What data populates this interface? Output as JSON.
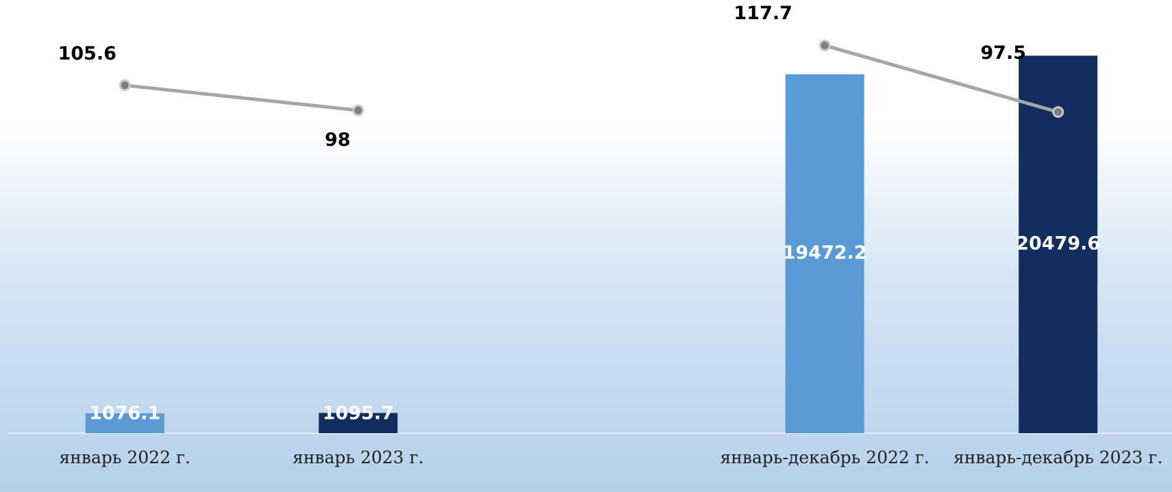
{
  "chart_data": {
    "type": "bar",
    "categories": [
      "январь 2022 г.",
      "январь 2023 г.",
      null,
      "январь-декабрь 2022 г.",
      "январь-декабрь 2023 г."
    ],
    "ylim": [
      0,
      23500
    ],
    "y2lim": [
      0,
      131.5
    ],
    "series": [
      {
        "type": "bar",
        "colors": [
          "#5b9bd5",
          "#112e5f",
          null,
          "#5b9bd5",
          "#112e5f"
        ],
        "values": [
          1076.1,
          1095.7,
          null,
          19472.2,
          20479.6
        ]
      },
      {
        "type": "line",
        "axis": "y2",
        "color": "#a6a6a6",
        "values": [
          105.6,
          98,
          null,
          117.7,
          97.5
        ]
      }
    ]
  }
}
